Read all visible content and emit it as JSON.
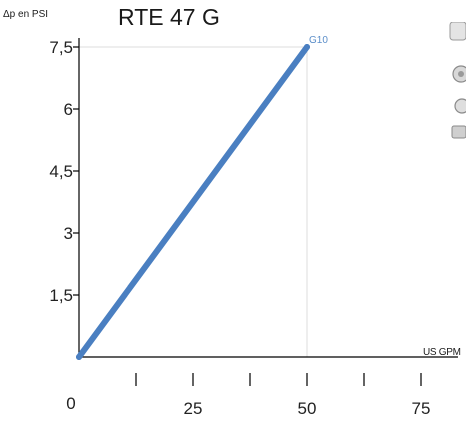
{
  "chart_data": {
    "type": "line",
    "title": "RTE 47 G",
    "ylabel": "Δp en PSI",
    "xlabel": "US GPM",
    "x_ticks": [
      "0",
      "25",
      "50",
      "75"
    ],
    "y_ticks": [
      "1,5",
      "3",
      "4,5",
      "6",
      "7,5"
    ],
    "xlim": [
      0,
      75
    ],
    "ylim": [
      0,
      7.5
    ],
    "series": [
      {
        "name": "G10",
        "color": "#4a7fc1",
        "x": [
          0,
          50
        ],
        "y": [
          0,
          7.5
        ]
      }
    ],
    "annotations": [
      {
        "text": "G10",
        "x": 50,
        "y": 7.5
      }
    ]
  }
}
